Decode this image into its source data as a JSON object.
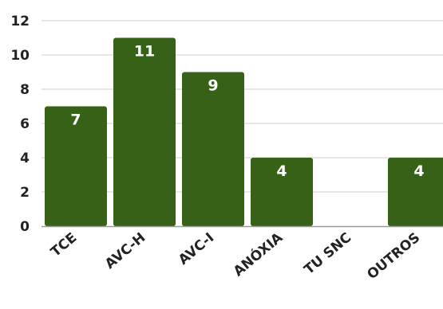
{
  "chart_data": {
    "type": "bar",
    "categories": [
      "TCE",
      "AVC-H",
      "AVC-I",
      "ANÓXIA",
      "TU SNC",
      "OUTROS"
    ],
    "values": [
      7,
      11,
      9,
      4,
      0,
      4
    ],
    "value_labels": [
      "7",
      "11",
      "9",
      "4",
      "",
      "4"
    ],
    "y_ticks": [
      "0",
      "2",
      "4",
      "6",
      "8",
      "10",
      "12"
    ],
    "ylim": [
      0,
      12
    ],
    "grid": true,
    "bar_color": "#376116",
    "grid_color": "#cfcfcf",
    "axis_color": "#9a9a9a"
  }
}
